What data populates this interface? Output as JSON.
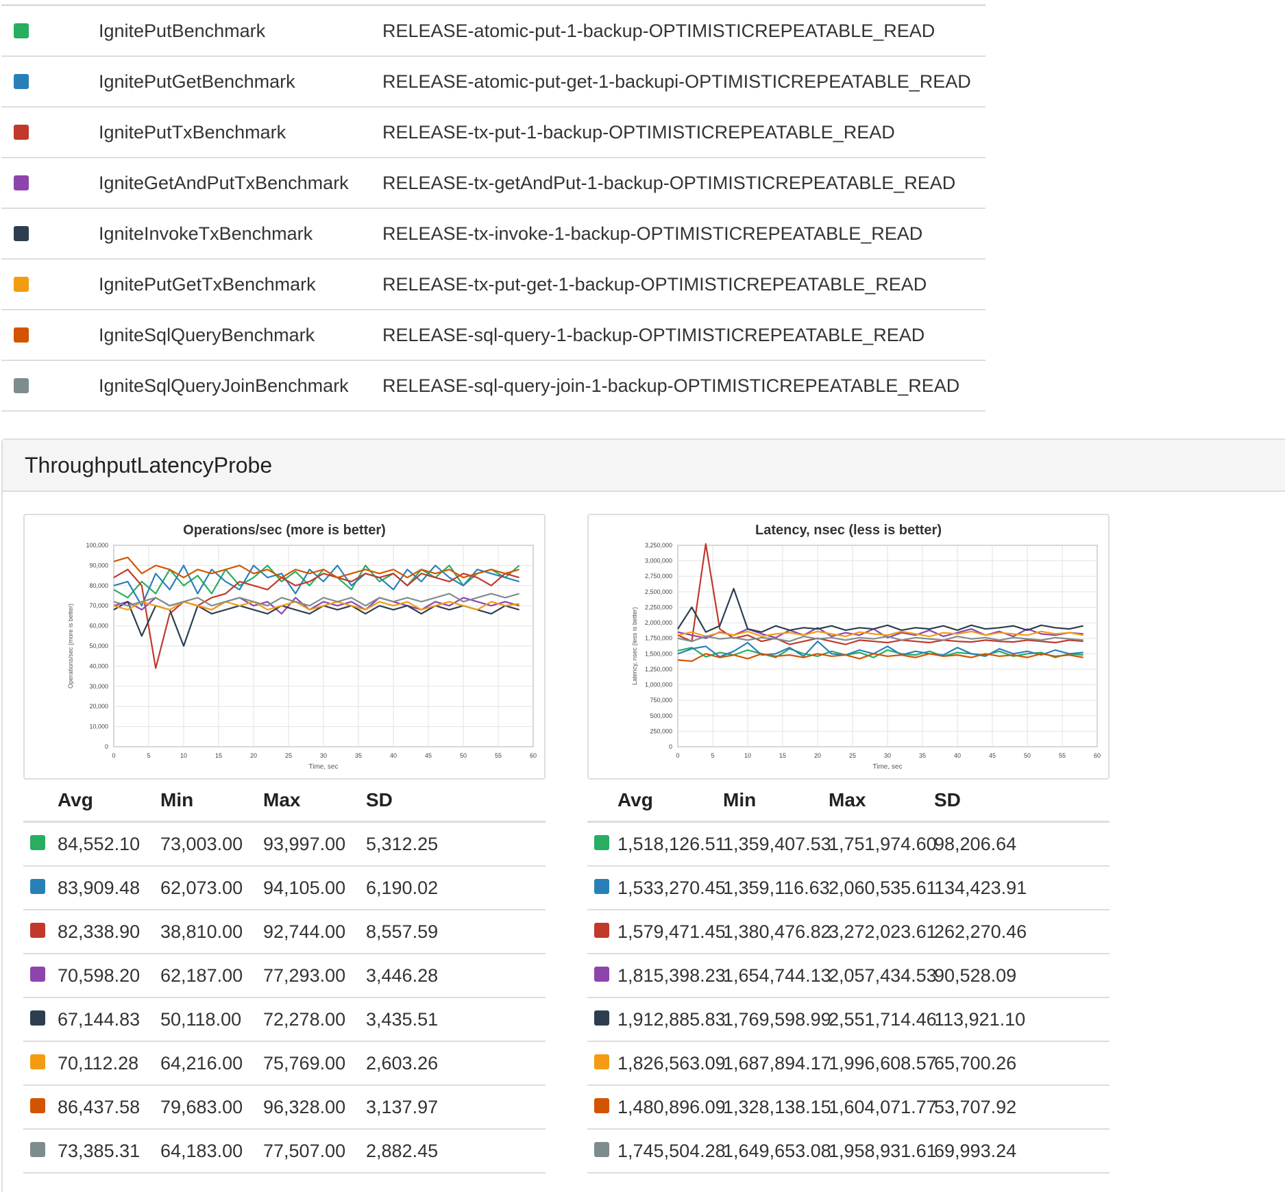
{
  "legend": [
    {
      "color": "#27ae60",
      "name": "IgnitePutBenchmark",
      "config": "RELEASE-atomic-put-1-backup-OPTIMISTICREPEATABLE_READ"
    },
    {
      "color": "#2980b9",
      "name": "IgnitePutGetBenchmark",
      "config": "RELEASE-atomic-put-get-1-backupi-OPTIMISTICREPEATABLE_READ"
    },
    {
      "color": "#c0392b",
      "name": "IgnitePutTxBenchmark",
      "config": "RELEASE-tx-put-1-backup-OPTIMISTICREPEATABLE_READ"
    },
    {
      "color": "#8e44ad",
      "name": "IgniteGetAndPutTxBenchmark",
      "config": "RELEASE-tx-getAndPut-1-backup-OPTIMISTICREPEATABLE_READ"
    },
    {
      "color": "#2c3e50",
      "name": "IgniteInvokeTxBenchmark",
      "config": "RELEASE-tx-invoke-1-backup-OPTIMISTICREPEATABLE_READ"
    },
    {
      "color": "#f39c12",
      "name": "IgnitePutGetTxBenchmark",
      "config": "RELEASE-tx-put-get-1-backup-OPTIMISTICREPEATABLE_READ"
    },
    {
      "color": "#d35400",
      "name": "IgniteSqlQueryBenchmark",
      "config": "RELEASE-sql-query-1-backup-OPTIMISTICREPEATABLE_READ"
    },
    {
      "color": "#7f8c8d",
      "name": "IgniteSqlQueryJoinBenchmark",
      "config": "RELEASE-sql-query-join-1-backup-OPTIMISTICREPEATABLE_READ"
    }
  ],
  "panel": {
    "title": "ThroughputLatencyProbe"
  },
  "stats_headers": {
    "avg": "Avg",
    "min": "Min",
    "max": "Max",
    "sd": "SD"
  },
  "chart_data": [
    {
      "type": "line",
      "title": "Operations/sec (more is better)",
      "xlabel": "Time, sec",
      "ylabel": "Operations/sec (more is better)",
      "xlim": [
        0,
        60
      ],
      "ylim": [
        0,
        100000
      ],
      "xticks": [
        "0",
        "5",
        "10",
        "15",
        "20",
        "25",
        "30",
        "35",
        "40",
        "45",
        "50",
        "55",
        "60"
      ],
      "yticks": [
        "0",
        "10,000",
        "20,000",
        "30,000",
        "40,000",
        "50,000",
        "60,000",
        "70,000",
        "80,000",
        "90,000",
        "100,000"
      ],
      "grid": true,
      "x": [
        0,
        2,
        4,
        6,
        8,
        10,
        12,
        14,
        16,
        18,
        20,
        22,
        24,
        26,
        28,
        30,
        32,
        34,
        36,
        38,
        40,
        42,
        44,
        46,
        48,
        50,
        52,
        54,
        56,
        58
      ],
      "series": [
        {
          "color": "#27ae60",
          "values": [
            78000,
            74000,
            82000,
            76000,
            88000,
            80000,
            85000,
            76000,
            88000,
            80000,
            84000,
            90000,
            82000,
            87000,
            80000,
            88000,
            84000,
            78000,
            90000,
            82000,
            86000,
            80000,
            88000,
            84000,
            90000,
            80000,
            86000,
            88000,
            84000,
            90000
          ]
        },
        {
          "color": "#2980b9",
          "values": [
            80000,
            82000,
            70000,
            86000,
            78000,
            90000,
            76000,
            88000,
            82000,
            78000,
            90000,
            84000,
            86000,
            76000,
            88000,
            82000,
            90000,
            80000,
            86000,
            84000,
            78000,
            88000,
            82000,
            90000,
            84000,
            80000,
            88000,
            86000,
            84000,
            82000
          ]
        },
        {
          "color": "#c0392b",
          "values": [
            84000,
            88000,
            80000,
            39000,
            66000,
            72000,
            70000,
            74000,
            76000,
            82000,
            80000,
            78000,
            84000,
            80000,
            82000,
            86000,
            84000,
            82000,
            86000,
            84000,
            86000,
            80000,
            86000,
            84000,
            82000,
            86000,
            84000,
            80000,
            86000,
            84000
          ]
        },
        {
          "color": "#8e44ad",
          "values": [
            70000,
            72000,
            68000,
            74000,
            70000,
            72000,
            70000,
            68000,
            72000,
            74000,
            70000,
            72000,
            66000,
            74000,
            68000,
            72000,
            70000,
            72000,
            68000,
            74000,
            72000,
            70000,
            68000,
            72000,
            70000,
            74000,
            72000,
            70000,
            72000,
            70000
          ]
        },
        {
          "color": "#2c3e50",
          "values": [
            68000,
            72000,
            55000,
            70000,
            68000,
            50000,
            70000,
            66000,
            68000,
            70000,
            68000,
            66000,
            70000,
            68000,
            66000,
            70000,
            68000,
            70000,
            66000,
            70000,
            68000,
            70000,
            66000,
            70000,
            68000,
            70000,
            68000,
            66000,
            70000,
            68000
          ]
        },
        {
          "color": "#f39c12",
          "values": [
            70000,
            68000,
            72000,
            70000,
            68000,
            72000,
            70000,
            68000,
            72000,
            70000,
            72000,
            68000,
            70000,
            72000,
            68000,
            70000,
            72000,
            70000,
            68000,
            72000,
            70000,
            72000,
            68000,
            70000,
            72000,
            70000,
            68000,
            72000,
            70000,
            71000
          ]
        },
        {
          "color": "#d35400",
          "values": [
            92000,
            94000,
            86000,
            90000,
            88000,
            84000,
            88000,
            86000,
            88000,
            90000,
            86000,
            88000,
            84000,
            88000,
            86000,
            88000,
            84000,
            86000,
            88000,
            86000,
            88000,
            84000,
            88000,
            86000,
            88000,
            84000,
            86000,
            88000,
            86000,
            88000
          ]
        },
        {
          "color": "#7f8c8d",
          "values": [
            72000,
            70000,
            72000,
            74000,
            70000,
            72000,
            74000,
            70000,
            72000,
            74000,
            72000,
            70000,
            74000,
            72000,
            70000,
            74000,
            72000,
            74000,
            70000,
            74000,
            72000,
            74000,
            72000,
            74000,
            76000,
            72000,
            74000,
            76000,
            74000,
            76000
          ]
        }
      ],
      "stats": [
        {
          "avg": "84,552.10",
          "min": "73,003.00",
          "max": "93,997.00",
          "sd": "5,312.25"
        },
        {
          "avg": "83,909.48",
          "min": "62,073.00",
          "max": "94,105.00",
          "sd": "6,190.02"
        },
        {
          "avg": "82,338.90",
          "min": "38,810.00",
          "max": "92,744.00",
          "sd": "8,557.59"
        },
        {
          "avg": "70,598.20",
          "min": "62,187.00",
          "max": "77,293.00",
          "sd": "3,446.28"
        },
        {
          "avg": "67,144.83",
          "min": "50,118.00",
          "max": "72,278.00",
          "sd": "3,435.51"
        },
        {
          "avg": "70,112.28",
          "min": "64,216.00",
          "max": "75,769.00",
          "sd": "2,603.26"
        },
        {
          "avg": "86,437.58",
          "min": "79,683.00",
          "max": "96,328.00",
          "sd": "3,137.97"
        },
        {
          "avg": "73,385.31",
          "min": "64,183.00",
          "max": "77,507.00",
          "sd": "2,882.45"
        }
      ]
    },
    {
      "type": "line",
      "title": "Latency, nsec (less is better)",
      "xlabel": "Time, sec",
      "ylabel": "Latency, nsec (less is better)",
      "xlim": [
        0,
        60
      ],
      "ylim": [
        0,
        3250000
      ],
      "xticks": [
        "0",
        "5",
        "10",
        "15",
        "20",
        "25",
        "30",
        "35",
        "40",
        "45",
        "50",
        "55",
        "60"
      ],
      "yticks": [
        "0",
        "250,000",
        "500,000",
        "750,000",
        "1,000,000",
        "1,250,000",
        "1,500,000",
        "1,750,000",
        "2,000,000",
        "2,250,000",
        "2,500,000",
        "2,750,000",
        "3,000,000",
        "3,250,000"
      ],
      "grid": true,
      "x": [
        0,
        2,
        4,
        6,
        8,
        10,
        12,
        14,
        16,
        18,
        20,
        22,
        24,
        26,
        28,
        30,
        32,
        34,
        36,
        38,
        40,
        42,
        44,
        46,
        48,
        50,
        52,
        54,
        56,
        58
      ],
      "series": [
        {
          "color": "#27ae60",
          "values": [
            1550000,
            1600000,
            1450000,
            1520000,
            1480000,
            1560000,
            1500000,
            1440000,
            1580000,
            1500000,
            1460000,
            1540000,
            1480000,
            1520000,
            1440000,
            1560000,
            1500000,
            1480000,
            1540000,
            1460000,
            1520000,
            1500000,
            1480000,
            1540000,
            1460000,
            1500000,
            1520000,
            1440000,
            1500000,
            1480000
          ]
        },
        {
          "color": "#2980b9",
          "values": [
            1500000,
            1580000,
            1620000,
            1450000,
            1540000,
            1680000,
            1480000,
            1500000,
            1600000,
            1460000,
            1700000,
            1500000,
            1480000,
            1560000,
            1500000,
            1620000,
            1480000,
            1540000,
            1500000,
            1480000,
            1600000,
            1500000,
            1460000,
            1580000,
            1500000,
            1540000,
            1480000,
            1560000,
            1500000,
            1520000
          ]
        },
        {
          "color": "#c0392b",
          "values": [
            1800000,
            1700000,
            3272000,
            1900000,
            1750000,
            1800000,
            1700000,
            1750000,
            1650000,
            1700000,
            1750000,
            1700000,
            1650000,
            1720000,
            1700000,
            1680000,
            1720000,
            1700000,
            1680000,
            1720000,
            1700000,
            1690000,
            1720000,
            1700000,
            1690000,
            1720000,
            1700000,
            1680000,
            1720000,
            1700000
          ]
        },
        {
          "color": "#8e44ad",
          "values": [
            1850000,
            1800000,
            1750000,
            1850000,
            1800000,
            1900000,
            1820000,
            1760000,
            1880000,
            1800000,
            1920000,
            1780000,
            1840000,
            1800000,
            1900000,
            1760000,
            1840000,
            1800000,
            1880000,
            1780000,
            1840000,
            1900000,
            1800000,
            1860000,
            1780000,
            1900000,
            1820000,
            1800000,
            1840000,
            1820000
          ]
        },
        {
          "color": "#2c3e50",
          "values": [
            1900000,
            2250000,
            1850000,
            1950000,
            2550000,
            1900000,
            1850000,
            1950000,
            1880000,
            1920000,
            1900000,
            1950000,
            1880000,
            1920000,
            1900000,
            1960000,
            1880000,
            1920000,
            1900000,
            1950000,
            1880000,
            1960000,
            1900000,
            1920000,
            1950000,
            1880000,
            1960000,
            1920000,
            1900000,
            1950000
          ]
        },
        {
          "color": "#f39c12",
          "values": [
            1800000,
            1850000,
            1780000,
            1840000,
            1800000,
            1860000,
            1780000,
            1820000,
            1840000,
            1800000,
            1860000,
            1820000,
            1780000,
            1850000,
            1820000,
            1800000,
            1860000,
            1820000,
            1780000,
            1840000,
            1820000,
            1860000,
            1800000,
            1840000,
            1820000,
            1800000,
            1860000,
            1820000,
            1840000,
            1800000
          ]
        },
        {
          "color": "#d35400",
          "values": [
            1400000,
            1380000,
            1500000,
            1440000,
            1480000,
            1420000,
            1500000,
            1460000,
            1480000,
            1440000,
            1500000,
            1460000,
            1480000,
            1420000,
            1500000,
            1460000,
            1480000,
            1440000,
            1500000,
            1460000,
            1480000,
            1440000,
            1500000,
            1460000,
            1480000,
            1440000,
            1500000,
            1460000,
            1480000,
            1440000
          ]
        },
        {
          "color": "#7f8c8d",
          "values": [
            1750000,
            1700000,
            1780000,
            1740000,
            1760000,
            1720000,
            1760000,
            1740000,
            1700000,
            1780000,
            1740000,
            1760000,
            1720000,
            1760000,
            1740000,
            1780000,
            1720000,
            1760000,
            1740000,
            1720000,
            1780000,
            1740000,
            1760000,
            1720000,
            1760000,
            1740000,
            1720000,
            1760000,
            1740000,
            1720000
          ]
        }
      ],
      "stats": [
        {
          "avg": "1,518,126.51",
          "min": "1,359,407.53",
          "max": "1,751,974.60",
          "sd": "98,206.64"
        },
        {
          "avg": "1,533,270.45",
          "min": "1,359,116.63",
          "max": "2,060,535.61",
          "sd": "134,423.91"
        },
        {
          "avg": "1,579,471.45",
          "min": "1,380,476.82",
          "max": "3,272,023.61",
          "sd": "262,270.46"
        },
        {
          "avg": "1,815,398.23",
          "min": "1,654,744.13",
          "max": "2,057,434.53",
          "sd": "90,528.09"
        },
        {
          "avg": "1,912,885.83",
          "min": "1,769,598.99",
          "max": "2,551,714.46",
          "sd": "113,921.10"
        },
        {
          "avg": "1,826,563.09",
          "min": "1,687,894.17",
          "max": "1,996,608.57",
          "sd": "65,700.26"
        },
        {
          "avg": "1,480,896.09",
          "min": "1,328,138.15",
          "max": "1,604,071.77",
          "sd": "53,707.92"
        },
        {
          "avg": "1,745,504.28",
          "min": "1,649,653.08",
          "max": "1,958,931.61",
          "sd": "69,993.24"
        }
      ]
    }
  ]
}
